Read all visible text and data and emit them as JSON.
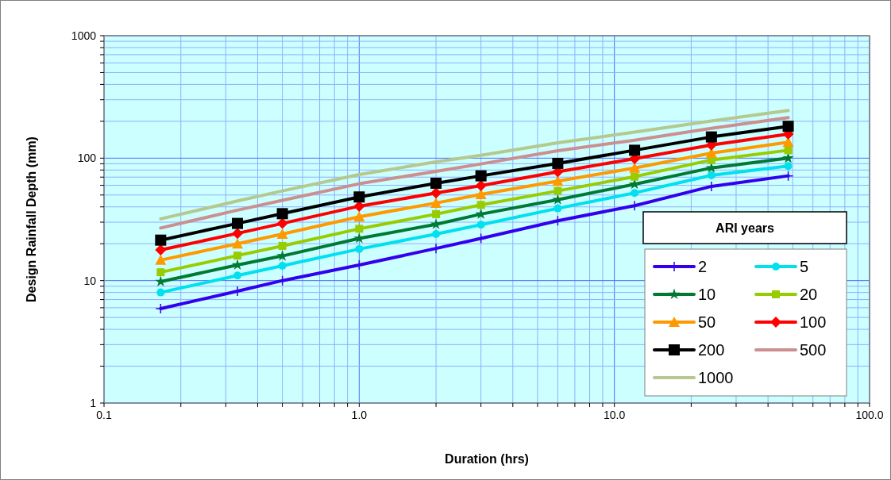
{
  "chart_data": {
    "type": "line",
    "xlabel": "Duration (hrs)",
    "ylabel": "Design Rainfall Depth (mm)",
    "legend_title": "ARI years",
    "x": [
      0.1667,
      0.3333,
      0.5,
      1,
      2,
      3,
      6,
      12,
      24,
      48
    ],
    "log": "xy",
    "grid": true,
    "legend": "bottom right",
    "xlim": [
      0.1,
      100
    ],
    "xticks": [
      {
        "value": 0.1,
        "label": "0.1"
      },
      {
        "value": 0.2,
        "label": null
      },
      {
        "value": 0.3,
        "label": null
      },
      {
        "value": 0.4,
        "label": null
      },
      {
        "value": 0.5,
        "label": null
      },
      {
        "value": 0.6,
        "label": null
      },
      {
        "value": 0.7,
        "label": null
      },
      {
        "value": 0.8,
        "label": null
      },
      {
        "value": 0.9,
        "label": null
      },
      {
        "value": 1,
        "label": "1.0"
      },
      {
        "value": 2,
        "label": null
      },
      {
        "value": 3,
        "label": null
      },
      {
        "value": 4,
        "label": null
      },
      {
        "value": 5,
        "label": null
      },
      {
        "value": 6,
        "label": null
      },
      {
        "value": 7,
        "label": null
      },
      {
        "value": 8,
        "label": null
      },
      {
        "value": 9,
        "label": null
      },
      {
        "value": 10,
        "label": "10.0"
      },
      {
        "value": 20,
        "label": null
      },
      {
        "value": 30,
        "label": null
      },
      {
        "value": 40,
        "label": null
      },
      {
        "value": 50,
        "label": null
      },
      {
        "value": 60,
        "label": null
      },
      {
        "value": 70,
        "label": null
      },
      {
        "value": 80,
        "label": null
      },
      {
        "value": 90,
        "label": null
      },
      {
        "value": 100,
        "label": "100.0"
      }
    ],
    "ylim": [
      1,
      1000
    ],
    "yticks": [
      1,
      {
        "value": 2,
        "label": null
      },
      {
        "value": 3,
        "label": null
      },
      {
        "value": 4,
        "label": null
      },
      {
        "value": 5,
        "label": null
      },
      {
        "value": 6,
        "label": null
      },
      {
        "value": 7,
        "label": null
      },
      {
        "value": 8,
        "label": null
      },
      {
        "value": 9,
        "label": null
      },
      10,
      {
        "value": 20,
        "label": null
      },
      {
        "value": 30,
        "label": null
      },
      {
        "value": 40,
        "label": null
      },
      {
        "value": 50,
        "label": null
      },
      {
        "value": 60,
        "label": null
      },
      {
        "value": 70,
        "label": null
      },
      {
        "value": 80,
        "label": null
      },
      {
        "value": 90,
        "label": null
      },
      100,
      {
        "value": 200,
        "label": null
      },
      {
        "value": 300,
        "label": null
      },
      {
        "value": 400,
        "label": null
      },
      {
        "value": 500,
        "label": null
      },
      {
        "value": 600,
        "label": null
      },
      {
        "value": 700,
        "label": null
      },
      {
        "value": 800,
        "label": null
      },
      {
        "value": 900,
        "label": null
      },
      1000
    ],
    "series": [
      {
        "name": "2",
        "color": "#3300ee",
        "marker": "cross",
        "values": [
          5.9,
          8.2,
          10.0,
          13.4,
          18.3,
          22.1,
          30.8,
          40.9,
          58.8,
          71.7
        ]
      },
      {
        "name": "5",
        "color": "#00e0ee",
        "marker": "circle",
        "values": [
          8.0,
          11.0,
          13.2,
          18.1,
          24.0,
          28.6,
          38.9,
          52,
          72.4,
          86.3
        ]
      },
      {
        "name": "10",
        "color": "#007a33",
        "marker": "star",
        "values": [
          9.8,
          13.4,
          15.9,
          22.1,
          28.8,
          34.9,
          45.8,
          61.2,
          83.2,
          100
        ]
      },
      {
        "name": "20",
        "color": "#99cc00",
        "marker": "square",
        "values": [
          11.7,
          16.0,
          19.2,
          26.5,
          34.9,
          41.5,
          54,
          70.6,
          96.6,
          116
        ]
      },
      {
        "name": "50",
        "color": "#ff9900",
        "marker": "triangle",
        "values": [
          14.7,
          20.0,
          24.0,
          33.2,
          43,
          50.6,
          65,
          83,
          110,
          135
        ]
      },
      {
        "name": "100",
        "color": "#ff0000",
        "marker": "diamond",
        "values": [
          17.8,
          24.3,
          29.3,
          40.5,
          51.9,
          59.7,
          77.3,
          99,
          128,
          157
        ]
      },
      {
        "name": "200",
        "color": "#000000",
        "marker": "square",
        "values": [
          21.4,
          29.3,
          35.2,
          48.2,
          62.4,
          71.7,
          90.6,
          116,
          149,
          182
        ]
      },
      {
        "name": "500",
        "color": "#cc8f8f",
        "marker": "none",
        "values": [
          26.9,
          37.6,
          45.2,
          61.8,
          78,
          89.7,
          115,
          140,
          175,
          214
        ]
      },
      {
        "name": "1000",
        "color": "#b5c98f",
        "marker": "none",
        "values": [
          31.9,
          44.7,
          54,
          73.5,
          93.3,
          105.6,
          133.6,
          163,
          201,
          245
        ]
      }
    ]
  }
}
